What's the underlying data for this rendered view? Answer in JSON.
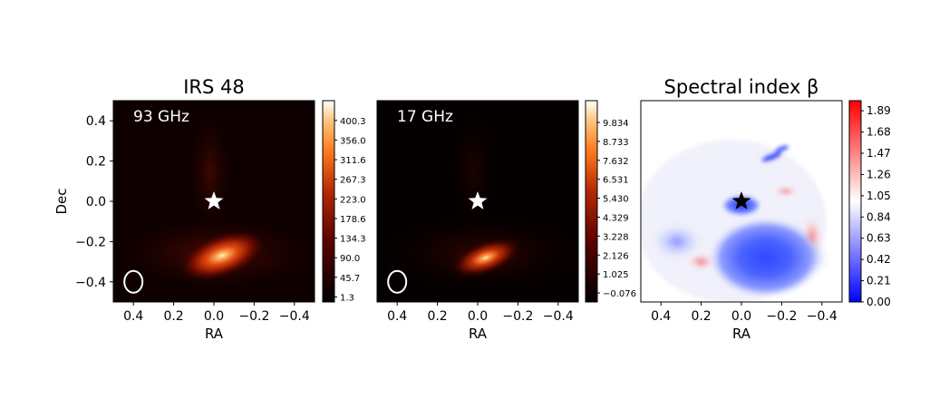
{
  "chart_data": [
    {
      "type": "heatmap",
      "title": "IRS 48",
      "annotation": "93 GHz",
      "xlabel": "RA",
      "ylabel": "Dec",
      "xlim": [
        0.5,
        -0.5
      ],
      "ylim": [
        -0.5,
        0.5
      ],
      "xticks": [
        "0.4",
        "0.2",
        "0.0",
        "−0.2",
        "−0.4"
      ],
      "xtick_values": [
        0.4,
        0.2,
        0.0,
        -0.2,
        -0.4
      ],
      "yticks": [
        "0.4",
        "0.2",
        "0.0",
        "−0.2",
        "−0.4"
      ],
      "ytick_values": [
        0.4,
        0.2,
        0.0,
        -0.2,
        -0.4
      ],
      "colormap": "gist_heat",
      "colorbar_range": [
        -10,
        445
      ],
      "colorbar_ticks": [
        "1.3",
        "45.7",
        "90.0",
        "134.3",
        "178.6",
        "223.0",
        "267.3",
        "311.6",
        "356.0",
        "400.3"
      ],
      "colorbar_values": [
        1.3,
        45.7,
        90.0,
        134.3,
        178.6,
        223.0,
        267.3,
        311.6,
        356.0,
        400.3
      ],
      "star": {
        "ra": 0.0,
        "dec": 0.0,
        "color": "#ffffff"
      },
      "beam_ellipse": {
        "ra": 0.4,
        "dec": -0.4,
        "color": "#ffffff"
      },
      "emission_peak": {
        "ra": -0.04,
        "dec": -0.27
      }
    },
    {
      "type": "heatmap",
      "title": "",
      "annotation": "17 GHz",
      "xlabel": "RA",
      "ylabel": "",
      "xlim": [
        0.5,
        -0.5
      ],
      "ylim": [
        -0.5,
        0.5
      ],
      "xticks": [
        "0.4",
        "0.2",
        "0.0",
        "−0.2",
        "−0.4"
      ],
      "xtick_values": [
        0.4,
        0.2,
        0.0,
        -0.2,
        -0.4
      ],
      "colormap": "gist_heat",
      "colorbar_range": [
        -0.6,
        11.1
      ],
      "colorbar_ticks": [
        "−0.076",
        "1.025",
        "2.126",
        "3.228",
        "4.329",
        "5.430",
        "6.531",
        "7.632",
        "8.733",
        "9.834"
      ],
      "colorbar_values": [
        -0.076,
        1.025,
        2.126,
        3.228,
        4.329,
        5.43,
        6.531,
        7.632,
        8.733,
        9.834
      ],
      "star": {
        "ra": 0.0,
        "dec": 0.0,
        "color": "#ffffff"
      },
      "beam_ellipse": {
        "ra": 0.4,
        "dec": -0.4,
        "color": "#ffffff"
      },
      "emission_peak": {
        "ra": -0.04,
        "dec": -0.28
      }
    },
    {
      "type": "heatmap",
      "title": "Spectral index β",
      "xlabel": "RA",
      "ylabel": "",
      "xlim": [
        0.5,
        -0.5
      ],
      "ylim": [
        -0.5,
        0.5
      ],
      "xticks": [
        "0.4",
        "0.2",
        "0.0",
        "−0.2",
        "−0.4"
      ],
      "xtick_values": [
        0.4,
        0.2,
        0.0,
        -0.2,
        -0.4
      ],
      "colormap": "bwr",
      "colorbar_range": [
        0.0,
        1.99
      ],
      "colorbar_ticks": [
        "0.00",
        "0.21",
        "0.42",
        "0.63",
        "0.84",
        "1.05",
        "1.26",
        "1.47",
        "1.68",
        "1.89"
      ],
      "colorbar_values": [
        0.0,
        0.21,
        0.42,
        0.63,
        0.84,
        1.05,
        1.26,
        1.47,
        1.68,
        1.89
      ],
      "star": {
        "ra": 0.0,
        "dec": 0.0,
        "color": "#000000"
      },
      "minimum_region": {
        "ra": -0.12,
        "dec": -0.28,
        "value": 0.25
      }
    }
  ]
}
